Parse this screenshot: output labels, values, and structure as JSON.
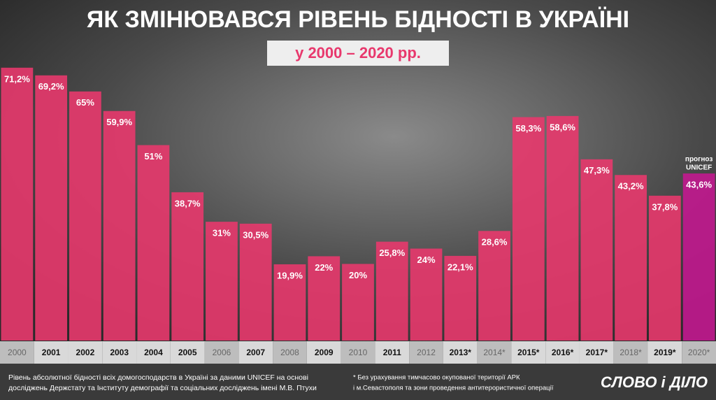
{
  "chart_data": {
    "type": "bar",
    "title": "ЯК ЗМІНЮВАВСЯ РІВЕНЬ БІДНОСТІ В  УКРАЇНІ",
    "subtitle": "у 2000 – 2020 рр.",
    "categories": [
      "2000",
      "2001",
      "2002",
      "2003",
      "2004",
      "2005",
      "2006",
      "2007",
      "2008",
      "2009",
      "2010",
      "2011",
      "2012",
      "2013*",
      "2014*",
      "2015*",
      "2016*",
      "2017*",
      "2018*",
      "2019*",
      "2020*"
    ],
    "values": [
      71.2,
      69.2,
      65,
      59.9,
      51,
      38.7,
      31,
      30.5,
      19.9,
      22,
      20,
      25.8,
      24,
      22.1,
      28.6,
      58.3,
      58.6,
      47.3,
      43.2,
      37.8,
      43.6
    ],
    "value_labels": [
      "71,2%",
      "69,2%",
      "65%",
      "59,9%",
      "51%",
      "38,7%",
      "31%",
      "30,5%",
      "19,9%",
      "22%",
      "20%",
      "25,8%",
      "24%",
      "22,1%",
      "28,6%",
      "58,3%",
      "58,6%",
      "47,3%",
      "43,2%",
      "37,8%",
      "43,6%"
    ],
    "colors": [
      "#e8386d",
      "#e8386d",
      "#e8386d",
      "#e8386d",
      "#e8386d",
      "#e8386d",
      "#e8386d",
      "#e8386d",
      "#e8386d",
      "#e8386d",
      "#e8386d",
      "#e8386d",
      "#e8386d",
      "#e8386d",
      "#e8386d",
      "#e8386d",
      "#e8386d",
      "#e8386d",
      "#e8386d",
      "#e8386d",
      "#c2188f"
    ],
    "annotation": [
      "прогноз",
      "UNICEF"
    ],
    "source": [
      "Рівень абсолютної бідності всіх домогосподарств в Україні за даними UNICEF на основі",
      "досліджень Держстату та Інституту демографії та соціальних досліджень імені М.В. Птухи"
    ],
    "footnote": [
      "* Без урахування тимчасово окупованої території АРК",
      "і м.Севастополя та зони проведення антитерористичної операції"
    ],
    "logo": "СЛОВО і ДІЛО"
  }
}
